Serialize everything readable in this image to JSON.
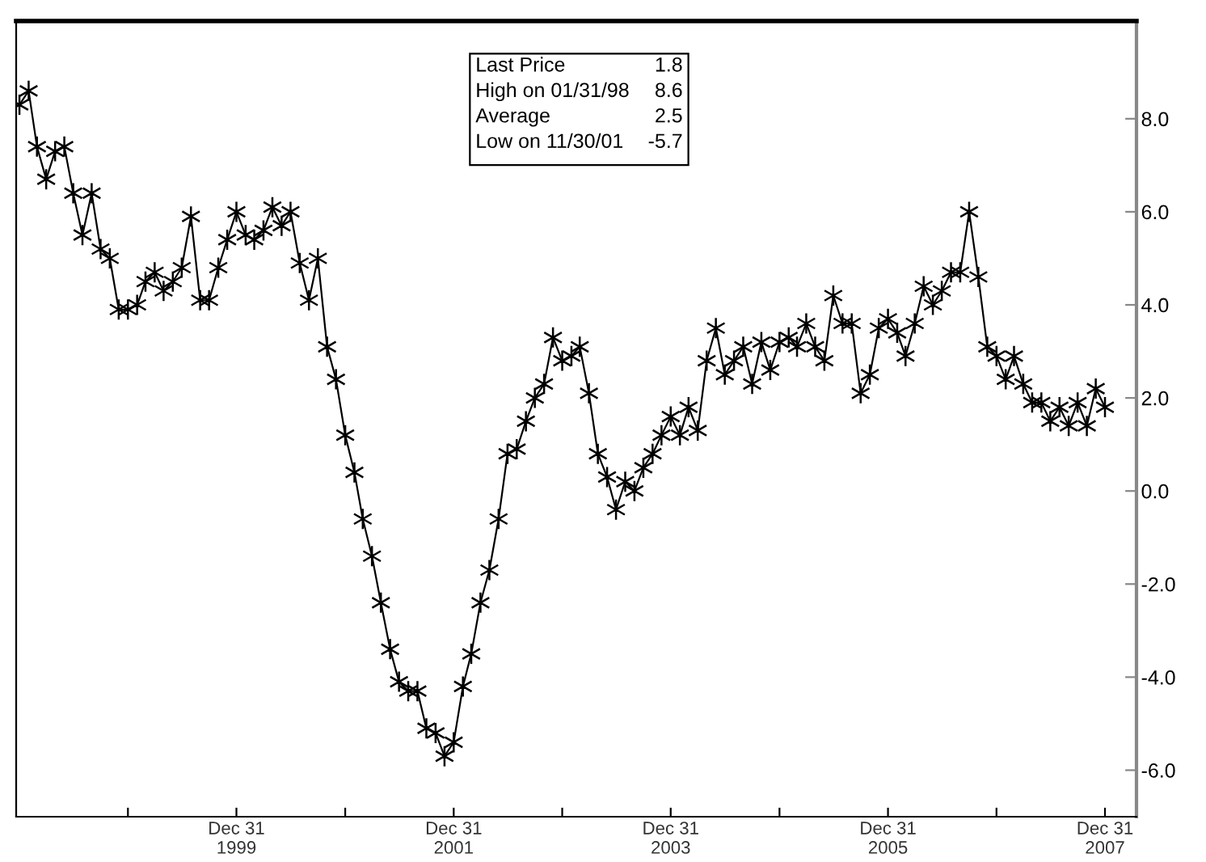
{
  "chart_data": {
    "type": "line",
    "x": [
      "1997-12-31",
      "1998-01-31",
      "1998-02-28",
      "1998-03-31",
      "1998-04-30",
      "1998-05-31",
      "1998-06-30",
      "1998-07-31",
      "1998-08-31",
      "1998-09-30",
      "1998-10-31",
      "1998-11-30",
      "1998-12-31",
      "1999-01-31",
      "1999-02-28",
      "1999-03-31",
      "1999-04-30",
      "1999-05-31",
      "1999-06-30",
      "1999-07-31",
      "1999-08-31",
      "1999-09-30",
      "1999-10-31",
      "1999-11-30",
      "1999-12-31",
      "2000-01-31",
      "2000-02-29",
      "2000-03-31",
      "2000-04-30",
      "2000-05-31",
      "2000-06-30",
      "2000-07-31",
      "2000-08-31",
      "2000-09-30",
      "2000-10-31",
      "2000-11-30",
      "2000-12-31",
      "2001-01-31",
      "2001-02-28",
      "2001-03-31",
      "2001-04-30",
      "2001-05-31",
      "2001-06-30",
      "2001-07-31",
      "2001-08-31",
      "2001-09-30",
      "2001-10-31",
      "2001-11-30",
      "2001-12-31",
      "2002-01-31",
      "2002-02-28",
      "2002-03-31",
      "2002-04-30",
      "2002-05-31",
      "2002-06-30",
      "2002-07-31",
      "2002-08-31",
      "2002-09-30",
      "2002-10-31",
      "2002-11-30",
      "2002-12-31",
      "2003-01-31",
      "2003-02-28",
      "2003-03-31",
      "2003-04-30",
      "2003-05-31",
      "2003-06-30",
      "2003-07-31",
      "2003-08-31",
      "2003-09-30",
      "2003-10-31",
      "2003-11-30",
      "2003-12-31",
      "2004-01-31",
      "2004-02-29",
      "2004-03-31",
      "2004-04-30",
      "2004-05-31",
      "2004-06-30",
      "2004-07-31",
      "2004-08-31",
      "2004-09-30",
      "2004-10-31",
      "2004-11-30",
      "2004-12-31",
      "2005-01-31",
      "2005-02-28",
      "2005-03-31",
      "2005-04-30",
      "2005-05-31",
      "2005-06-30",
      "2005-07-31",
      "2005-08-31",
      "2005-09-30",
      "2005-10-31",
      "2005-11-30",
      "2005-12-31",
      "2006-01-31",
      "2006-02-28",
      "2006-03-31",
      "2006-04-30",
      "2006-05-31",
      "2006-06-30",
      "2006-07-31",
      "2006-08-31",
      "2006-09-30",
      "2006-10-31",
      "2006-11-30",
      "2006-12-31",
      "2007-01-31",
      "2007-02-28",
      "2007-03-31",
      "2007-04-30",
      "2007-05-31",
      "2007-06-30",
      "2007-07-31",
      "2007-08-31",
      "2007-09-30",
      "2007-10-31",
      "2007-11-30",
      "2007-12-31"
    ],
    "series": [
      {
        "color": "#000000",
        "values": [
          8.3,
          8.6,
          7.4,
          6.7,
          7.3,
          7.4,
          6.4,
          5.5,
          6.4,
          5.2,
          5.0,
          3.9,
          3.9,
          4.0,
          4.5,
          4.7,
          4.3,
          4.5,
          4.8,
          5.9,
          4.1,
          4.1,
          4.8,
          5.4,
          6.0,
          5.5,
          5.4,
          5.6,
          6.1,
          5.7,
          6.0,
          4.9,
          4.1,
          5.0,
          3.1,
          2.4,
          1.2,
          0.4,
          -0.6,
          -1.4,
          -2.4,
          -3.4,
          -4.1,
          -4.3,
          -4.3,
          -5.1,
          -5.2,
          -5.7,
          -5.4,
          -4.2,
          -3.5,
          -2.4,
          -1.7,
          -0.6,
          0.8,
          0.9,
          1.5,
          2.0,
          2.3,
          3.3,
          2.8,
          2.9,
          3.1,
          2.1,
          0.8,
          0.3,
          -0.4,
          0.2,
          0.0,
          0.5,
          0.8,
          1.2,
          1.6,
          1.2,
          1.8,
          1.3,
          2.8,
          3.5,
          2.5,
          2.8,
          3.1,
          2.3,
          3.2,
          2.6,
          3.2,
          3.3,
          3.1,
          3.6,
          3.1,
          2.8,
          4.2,
          3.6,
          3.6,
          2.1,
          2.5,
          3.5,
          3.7,
          3.4,
          2.9,
          3.6,
          4.4,
          4.0,
          4.3,
          4.7,
          4.7,
          6.0,
          4.6,
          3.1,
          2.9,
          2.4,
          2.9,
          2.3,
          1.9,
          1.9,
          1.5,
          1.8,
          1.4,
          1.9,
          1.4,
          2.2,
          1.8
        ]
      }
    ],
    "xlim": [
      "1997-12-20",
      "2008-04-15"
    ],
    "xticks": [
      {
        "value": "1998-12-31",
        "label": null
      },
      {
        "value": "1999-12-31",
        "label": "Dec 31\n1999"
      },
      {
        "value": "2000-12-31",
        "label": null
      },
      {
        "value": "2001-12-31",
        "label": "Dec 31\n2001"
      },
      {
        "value": "2002-12-31",
        "label": null
      },
      {
        "value": "2003-12-31",
        "label": "Dec 31\n2003"
      },
      {
        "value": "2004-12-31",
        "label": null
      },
      {
        "value": "2005-12-31",
        "label": "Dec 31\n2005"
      },
      {
        "value": "2006-12-31",
        "label": null
      },
      {
        "value": "2007-12-31",
        "label": "Dec 31\n2007"
      }
    ],
    "ylim": [
      -7.0,
      10.1
    ],
    "yticks": [
      {
        "value": -6,
        "label": "-6.0"
      },
      {
        "value": -4,
        "label": "-4.0"
      },
      {
        "value": -2,
        "label": "-2.0"
      },
      {
        "value": 0,
        "label": "0.0"
      },
      {
        "value": 2,
        "label": "2.0"
      },
      {
        "value": 4,
        "label": "4.0"
      },
      {
        "value": 6,
        "label": "6.0"
      },
      {
        "value": 8,
        "label": "8.0"
      }
    ],
    "marker": "cross",
    "line_style": "solid",
    "grid": false,
    "legend": false,
    "annotations": [
      "Last Price",
      "1.8",
      "High on 01/31/98",
      "8.6",
      "Average",
      "2.5",
      "Low on 11/30/01",
      "-5.7"
    ]
  }
}
